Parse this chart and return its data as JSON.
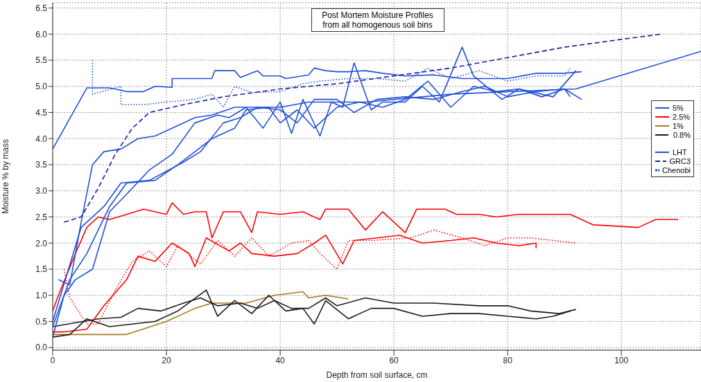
{
  "chart_data": {
    "type": "line",
    "title": "Post Mortem Moisture Profiles",
    "subtitle": "from all homogenous soil bins",
    "xlabel": "Depth from soil surface, cm",
    "ylabel": "Moisture % by mass",
    "xlim": [
      0,
      114
    ],
    "xticks": [
      0,
      20,
      40,
      60,
      80,
      100
    ],
    "ylim": [
      -0.05,
      6.6
    ],
    "yticks": [
      {
        "value": 0,
        "label": "0.0"
      },
      {
        "value": 0.5,
        "label": "0.5"
      },
      {
        "value": 1,
        "label": "1.0"
      },
      {
        "value": 1.5,
        "label": "1.5"
      },
      {
        "value": 2,
        "label": "2.0"
      },
      {
        "value": 2.5,
        "label": "2.5"
      },
      {
        "value": 3,
        "label": "3.0"
      },
      {
        "value": 3.5,
        "label": "3.5"
      },
      {
        "value": 4,
        "label": "4.0"
      },
      {
        "value": 4.5,
        "label": "4.5"
      },
      {
        "value": 5,
        "label": "5.0"
      },
      {
        "value": 5.5,
        "label": "5.5"
      },
      {
        "value": 6,
        "label": "6.0"
      },
      {
        "value": 6.5,
        "label": "6.5"
      }
    ],
    "grid": true,
    "legend": "right",
    "marker": "none",
    "series": [
      {
        "name": "5%",
        "color": "#1f4fd8",
        "line_style": "solid",
        "x": [
          0,
          6,
          10,
          13,
          16,
          18,
          21,
          21,
          28,
          28.5,
          32,
          33,
          36,
          37,
          40,
          41,
          45,
          46,
          48,
          50,
          52,
          55,
          58,
          62,
          67,
          72,
          80,
          85,
          90,
          93
        ],
        "values": [
          3.8,
          4.97,
          4.97,
          4.9,
          4.9,
          5.0,
          4.98,
          5.15,
          5.15,
          5.3,
          5.3,
          5.17,
          5.3,
          5.2,
          5.2,
          5.15,
          5.22,
          5.35,
          5.3,
          5.28,
          5.28,
          5.3,
          5.25,
          5.2,
          5.22,
          5.15,
          5.15,
          5.25,
          5.25,
          5.28
        ]
      },
      {
        "name": "2.5%",
        "color": "#ff0000",
        "line_style": "solid",
        "x": [
          0,
          1,
          4,
          6,
          8,
          10,
          13,
          16,
          20,
          21,
          23,
          25,
          27,
          28,
          30,
          33,
          35,
          36,
          40,
          44,
          47,
          48,
          52,
          55,
          58,
          62,
          64,
          69,
          71,
          75,
          78,
          82,
          86,
          91,
          95,
          103,
          106,
          110
        ],
        "values": [
          0.7,
          1.0,
          1.8,
          2.3,
          2.5,
          2.45,
          2.55,
          2.65,
          2.55,
          2.77,
          2.55,
          2.6,
          2.6,
          2.1,
          2.6,
          2.6,
          2.2,
          2.6,
          2.55,
          2.6,
          2.45,
          2.65,
          2.65,
          2.25,
          2.6,
          2.2,
          2.65,
          2.65,
          2.55,
          2.55,
          2.5,
          2.55,
          2.55,
          2.55,
          2.35,
          2.3,
          2.45,
          2.45
        ]
      },
      {
        "name": "1%",
        "color": "#a8781c",
        "line_style": "solid",
        "x": [
          0,
          13,
          20,
          25,
          28,
          34,
          39,
          44,
          45,
          48,
          52
        ],
        "values": [
          0.25,
          0.25,
          0.5,
          0.75,
          0.85,
          0.85,
          1.0,
          1.07,
          0.95,
          1.0,
          0.93
        ]
      },
      {
        "name": " 0.8%",
        "color": "#1a1a1a",
        "line_style": "solid",
        "x": [
          0,
          8,
          12,
          15,
          19,
          23,
          26,
          29,
          33,
          36,
          39,
          42,
          44,
          45,
          48,
          50,
          55,
          60,
          67,
          75,
          80,
          84,
          89,
          92
        ],
        "values": [
          0.4,
          0.55,
          0.58,
          0.75,
          0.7,
          0.85,
          0.95,
          0.8,
          0.85,
          0.75,
          0.9,
          0.75,
          0.75,
          0.75,
          0.95,
          0.8,
          0.95,
          0.85,
          0.85,
          0.8,
          0.8,
          0.7,
          0.65,
          0.73
        ]
      },
      {
        "name": "LHT",
        "color": "#1f4fd8",
        "line_style": "solid",
        "x": [
          1,
          3,
          5,
          7,
          9,
          12,
          15,
          18,
          21,
          25,
          28,
          32,
          40,
          45,
          55,
          70,
          80,
          92,
          114
        ],
        "values": [
          1.3,
          1.2,
          2.4,
          3.5,
          3.75,
          3.8,
          4.0,
          4.05,
          4.2,
          4.4,
          4.45,
          4.6,
          4.6,
          4.7,
          4.7,
          4.85,
          4.9,
          4.95,
          5.67
        ]
      },
      {
        "name": "GRC3",
        "color": "#1a1aa0",
        "line_style": "dashed",
        "x": [
          2,
          5,
          8,
          11,
          14,
          17,
          23,
          30,
          40,
          50,
          60,
          70,
          80,
          90,
          100,
          107
        ],
        "values": [
          2.4,
          2.5,
          3.05,
          3.7,
          4.2,
          4.5,
          4.65,
          4.8,
          4.95,
          5.05,
          5.2,
          5.35,
          5.55,
          5.75,
          5.9,
          6.0
        ]
      },
      {
        "name": "Chenobi",
        "color": "#1f4fd8",
        "line_style": "dotted",
        "x": [
          7,
          7,
          12,
          12,
          16,
          20,
          25,
          28,
          30,
          32,
          35,
          40,
          44,
          47,
          52,
          57,
          62,
          66,
          70,
          75,
          80,
          85,
          90,
          91
        ],
        "values": [
          5.5,
          4.85,
          5.0,
          4.65,
          4.65,
          4.7,
          4.75,
          4.85,
          4.6,
          5.0,
          4.88,
          4.9,
          5.05,
          5.1,
          5.15,
          5.15,
          5.1,
          5.35,
          5.15,
          5.3,
          5.1,
          5.2,
          5.2,
          5.35
        ]
      },
      {
        "color": "#1f4fd8",
        "line_style": "solid",
        "x": [
          0,
          5,
          9,
          12,
          17,
          23,
          26,
          30,
          33,
          36,
          40,
          43,
          46,
          50,
          53,
          57,
          62,
          67,
          72,
          76,
          80,
          85,
          90,
          93
        ],
        "values": [
          0.5,
          2.3,
          2.7,
          3.15,
          3.2,
          3.55,
          3.75,
          4.3,
          4.4,
          4.6,
          4.55,
          4.3,
          4.75,
          4.75,
          4.5,
          4.75,
          4.8,
          4.75,
          4.9,
          5.0,
          4.8,
          4.9,
          4.95,
          4.75
        ]
      },
      {
        "color": "#1f4fd8",
        "line_style": "solid",
        "x": [
          0,
          3,
          6,
          10,
          13,
          18,
          22,
          28,
          32,
          34,
          38,
          40,
          43,
          46,
          50,
          54,
          58,
          62,
          66,
          70,
          74,
          78,
          82,
          88,
          92
        ],
        "values": [
          0.4,
          1.3,
          1.8,
          2.7,
          3.15,
          3.2,
          3.5,
          4.0,
          4.2,
          4.55,
          4.6,
          4.3,
          4.55,
          4.2,
          4.6,
          4.7,
          4.6,
          4.75,
          5.1,
          4.6,
          5.0,
          4.9,
          4.95,
          4.8,
          5.3
        ]
      },
      {
        "color": "#1f4fd8",
        "line_style": "solid",
        "x": [
          0,
          2,
          4,
          7,
          10,
          14,
          17,
          21,
          25,
          29,
          31,
          34,
          37,
          40,
          42,
          44,
          47,
          49,
          51,
          53,
          56,
          58,
          62,
          65,
          68,
          72,
          74,
          79,
          82,
          86,
          90,
          91
        ],
        "values": [
          0.2,
          1.0,
          1.3,
          1.5,
          2.6,
          3.05,
          3.4,
          3.7,
          4.3,
          4.45,
          4.4,
          4.6,
          4.2,
          4.7,
          4.1,
          4.75,
          4.05,
          4.7,
          4.6,
          5.45,
          4.55,
          4.7,
          4.7,
          5.0,
          4.7,
          5.75,
          5.2,
          4.75,
          4.95,
          4.8,
          4.95,
          4.8
        ]
      },
      {
        "color": "#ff0000",
        "line_style": "solid",
        "x": [
          0,
          2,
          6,
          9,
          13,
          15,
          18,
          21,
          24,
          25,
          27,
          31,
          33,
          35,
          39,
          43,
          46,
          48,
          51,
          53,
          57,
          61,
          65,
          70,
          74,
          78,
          82,
          85,
          85
        ],
        "values": [
          0.3,
          0.3,
          0.35,
          0.8,
          1.3,
          1.75,
          1.65,
          2.0,
          1.8,
          1.55,
          2.1,
          1.85,
          2.0,
          1.8,
          1.75,
          1.8,
          2.0,
          2.15,
          1.6,
          2.05,
          2.1,
          2.15,
          2.0,
          2.05,
          2.1,
          2.0,
          1.95,
          2.0,
          1.9
        ]
      },
      {
        "color": "#ff0000",
        "line_style": "dotted",
        "x": [
          2,
          3,
          6,
          8,
          11,
          14,
          17,
          20,
          22,
          26,
          29,
          32,
          35,
          38,
          42,
          45,
          47,
          50,
          52,
          56,
          63,
          67,
          72,
          76,
          80,
          84,
          88,
          92
        ],
        "values": [
          1.5,
          0.95,
          0.45,
          0.45,
          1.1,
          1.65,
          1.85,
          1.55,
          1.95,
          1.6,
          2.05,
          1.75,
          2.1,
          1.75,
          2.0,
          2.05,
          1.8,
          1.5,
          2.05,
          2.05,
          2.1,
          2.25,
          2.1,
          1.95,
          2.1,
          2.1,
          2.05,
          2.0
        ]
      },
      {
        "color": "#1a1a1a",
        "line_style": "solid",
        "x": [
          0,
          3,
          6,
          10,
          14,
          18,
          22,
          27,
          29,
          32,
          35,
          38,
          41,
          44,
          46,
          48,
          52,
          56,
          60,
          65,
          70,
          75,
          80,
          85,
          88,
          91
        ],
        "values": [
          0.2,
          0.25,
          0.55,
          0.4,
          0.45,
          0.5,
          0.7,
          1.1,
          0.6,
          0.9,
          0.65,
          1.0,
          0.7,
          0.75,
          0.45,
          0.9,
          0.55,
          0.75,
          0.75,
          0.6,
          0.65,
          0.65,
          0.6,
          0.55,
          0.6,
          0.7
        ]
      }
    ]
  }
}
